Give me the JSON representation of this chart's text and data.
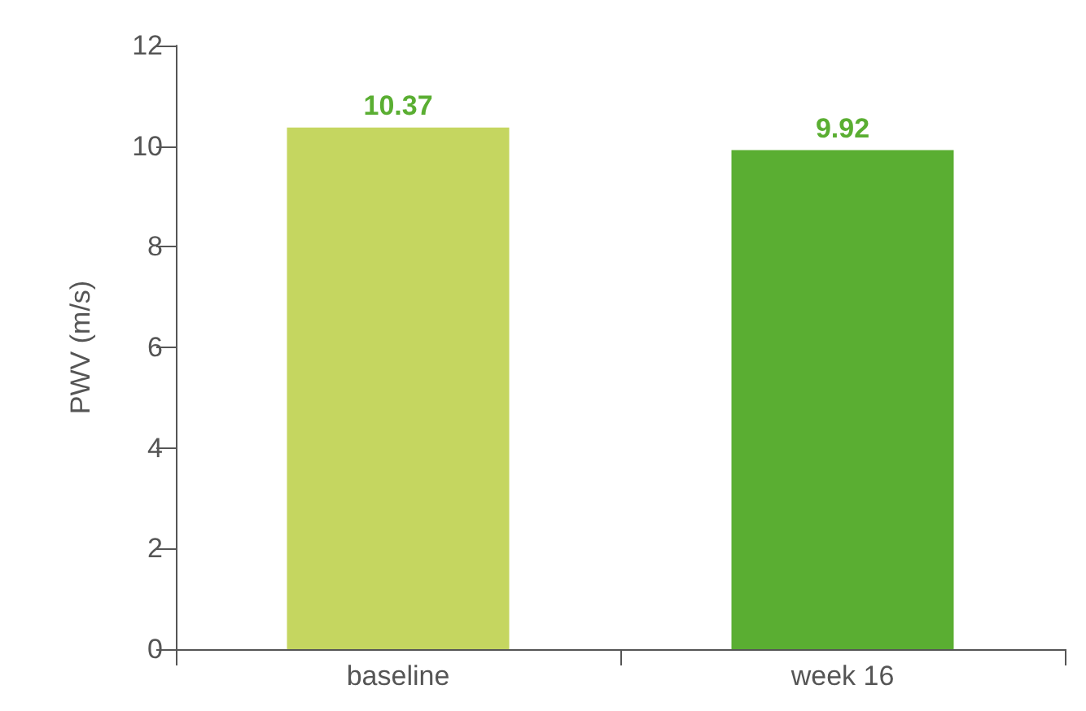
{
  "chart_data": {
    "type": "bar",
    "ylabel": "PWV (m/s)",
    "categories": [
      "baseline",
      "week 16"
    ],
    "values": [
      10.37,
      9.92
    ],
    "colors": [
      "#c5d660",
      "#5aae32"
    ],
    "ylim": [
      0,
      12
    ],
    "yticks": [
      0,
      2,
      4,
      6,
      8,
      10,
      12
    ],
    "data_labels": true,
    "grid": false
  }
}
